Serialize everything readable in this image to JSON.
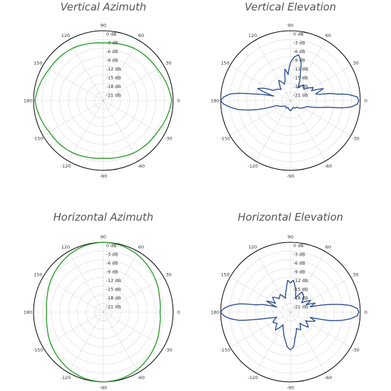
{
  "chart_data": [
    {
      "type": "polar",
      "title": "Vertical Azimuth",
      "angle_labels": [
        "90",
        "60",
        "30",
        "0",
        "-30",
        "-60",
        "-90",
        "-120",
        "-150",
        "180",
        "150",
        "120"
      ],
      "radial_labels": [
        "0 dB",
        "-3 dB",
        "-6 dB",
        "-9 dB",
        "-12 dB",
        "-15 dB",
        "-18 dB",
        "-21 dB"
      ],
      "rlim_db": [
        -24,
        0
      ],
      "color": "#2f9e2f",
      "series": [
        {
          "angles_deg": [
            0,
            15,
            30,
            45,
            60,
            75,
            90,
            105,
            120,
            135,
            150,
            165,
            180,
            195,
            210,
            225,
            240,
            255,
            270,
            285,
            300,
            315,
            330,
            345
          ],
          "gain_db": [
            -0.5,
            -1.5,
            -2.5,
            -2.8,
            -3.2,
            -3.8,
            -4.2,
            -3.8,
            -3.2,
            -2.8,
            -2.5,
            -1.5,
            -0.5,
            -1.5,
            -2.5,
            -2.8,
            -3.2,
            -3.8,
            -4.2,
            -3.8,
            -3.2,
            -2.8,
            -2.5,
            -1.5
          ]
        }
      ]
    },
    {
      "type": "polar",
      "title": "Vertical Elevation",
      "angle_labels": [
        "90",
        "60",
        "30",
        "0",
        "-30",
        "-60",
        "-90",
        "-120",
        "-150",
        "180",
        "150",
        "120"
      ],
      "radial_labels": [
        "0 dB",
        "-3 dB",
        "-6 dB",
        "-9 dB",
        "-12 dB",
        "-15 dB",
        "-18 dB",
        "-21 dB"
      ],
      "rlim_db": [
        -24,
        0
      ],
      "color": "#2d4f8e",
      "series": [
        {
          "angles_deg": [
            0,
            3,
            6,
            8,
            10,
            12,
            15,
            20,
            25,
            30,
            40,
            50,
            60,
            70,
            75,
            80,
            85,
            90,
            95,
            100,
            105,
            110,
            120,
            130,
            140,
            150,
            155,
            160,
            165,
            170,
            172,
            174,
            177,
            180,
            183,
            186,
            190,
            195,
            200,
            210,
            220,
            230,
            240,
            250,
            260,
            270,
            280,
            290,
            300,
            310,
            320,
            330,
            340,
            345,
            350,
            352,
            354,
            357
          ],
          "gain_db": [
            -0.5,
            -1,
            -4,
            -8,
            -10,
            -14,
            -15,
            -12,
            -16,
            -15,
            -18,
            -17,
            -19,
            -14,
            -10,
            -8,
            -9,
            -11,
            -15,
            -13,
            -17,
            -18,
            -16,
            -19,
            -18,
            -17,
            -14,
            -12,
            -18,
            -11,
            -6,
            -3,
            -1,
            0,
            -1,
            -3,
            -6,
            -12,
            -19,
            -20,
            -21,
            -21.5,
            -21,
            -21.5,
            -21,
            -20.5,
            -21,
            -21.5,
            -21,
            -21,
            -20,
            -19,
            -18,
            -15,
            -11,
            -6,
            -3,
            -1
          ]
        }
      ]
    },
    {
      "type": "polar",
      "title": "Horizontal Azimuth",
      "angle_labels": [
        "90",
        "60",
        "30",
        "0",
        "-30",
        "-60",
        "-90",
        "-120",
        "-150",
        "180",
        "150",
        "120"
      ],
      "radial_labels": [
        "0 dB",
        "-3 dB",
        "-6 dB",
        "-9 dB",
        "-12 dB",
        "-15 dB",
        "-18 dB",
        "-21 dB"
      ],
      "rlim_db": [
        -24,
        0
      ],
      "color": "#2f9e2f",
      "series": [
        {
          "angles_deg": [
            0,
            15,
            30,
            45,
            60,
            75,
            90,
            105,
            120,
            135,
            150,
            165,
            180,
            195,
            210,
            225,
            240,
            255,
            270,
            285,
            300,
            315,
            330,
            345
          ],
          "gain_db": [
            -4.5,
            -4,
            -3,
            -2,
            -1,
            -0.3,
            0,
            -0.3,
            -1,
            -2,
            -3,
            -4,
            -4.5,
            -4,
            -3,
            -2,
            -1,
            -0.3,
            0,
            -0.3,
            -1,
            -2,
            -3,
            -4
          ]
        }
      ]
    },
    {
      "type": "polar",
      "title": "Horizontal Elevation",
      "angle_labels": [
        "90",
        "60",
        "30",
        "0",
        "-30",
        "-60",
        "-90",
        "-120",
        "-150",
        "180",
        "150",
        "120"
      ],
      "radial_labels": [
        "0 dB",
        "-3 dB",
        "-6 dB",
        "-9 dB",
        "-12 dB",
        "-15 dB",
        "-18 dB",
        "-21 dB"
      ],
      "rlim_db": [
        -24,
        0
      ],
      "color": "#2d4f8e",
      "series": [
        {
          "angles_deg": [
            0,
            3,
            6,
            9,
            12,
            15,
            20,
            25,
            30,
            40,
            50,
            60,
            70,
            80,
            85,
            90,
            95,
            100,
            110,
            120,
            130,
            140,
            150,
            155,
            160,
            165,
            168,
            171,
            174,
            177,
            180,
            183,
            186,
            189,
            192,
            195,
            200,
            210,
            220,
            230,
            240,
            250,
            260,
            265,
            270,
            275,
            280,
            290,
            300,
            310,
            320,
            330,
            340,
            345,
            348,
            351,
            354,
            357
          ],
          "gain_db": [
            -0.5,
            -1,
            -3,
            -7,
            -12,
            -17,
            -15,
            -18,
            -16,
            -19,
            -17,
            -16,
            -19,
            -15,
            -13,
            -14,
            -13,
            -16,
            -19,
            -17,
            -18,
            -16,
            -18,
            -15,
            -19,
            -14,
            -12,
            -6,
            -3,
            -1,
            0,
            -1,
            -3,
            -6,
            -12,
            -16,
            -19,
            -17,
            -18,
            -16,
            -19,
            -17,
            -14,
            -12,
            -11,
            -12,
            -15,
            -18,
            -17,
            -19,
            -16,
            -18,
            -15,
            -17,
            -10,
            -6,
            -3,
            -1
          ]
        }
      ]
    }
  ]
}
